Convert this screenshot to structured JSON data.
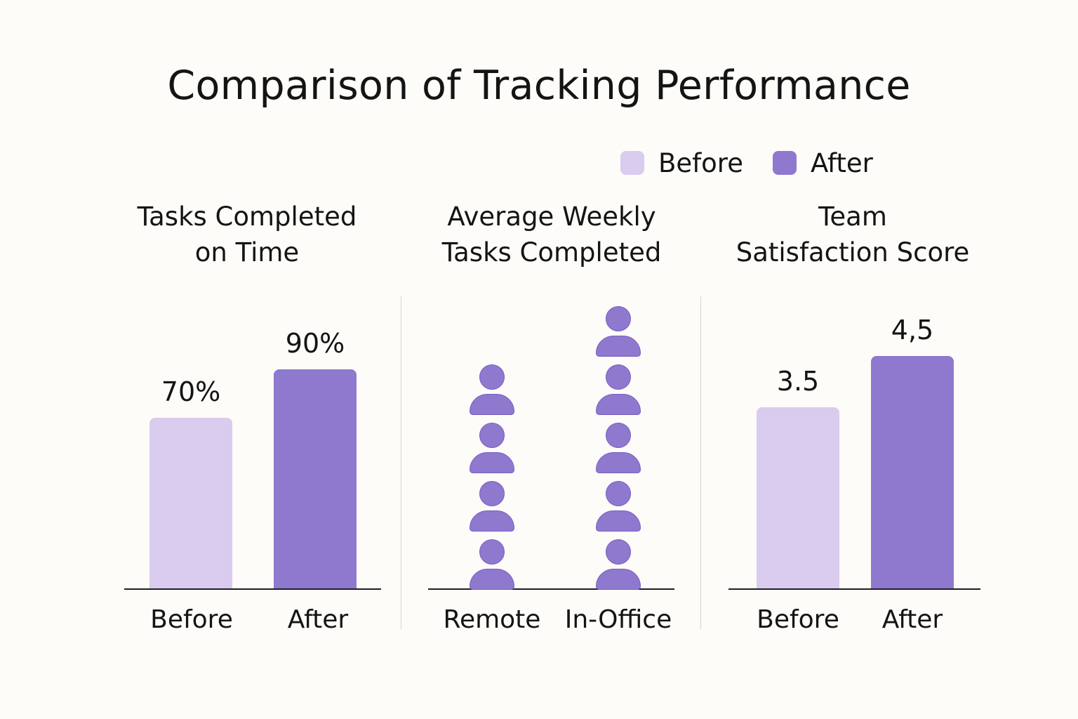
{
  "colors": {
    "before": "#d9ccee",
    "after": "#8e79cf",
    "icon": "#8e79cf"
  },
  "chart_data": {
    "type": "bar",
    "title": "Comparison of Tracking Performance",
    "legend": [
      "Before",
      "After"
    ],
    "legend_position": "top-right",
    "panels": [
      {
        "title": "Tasks Completed\non Time",
        "type": "bar",
        "categories": [
          "Before",
          "After"
        ],
        "values": [
          70,
          90
        ],
        "labels": [
          "70%",
          "90%"
        ],
        "ylim": [
          0,
          100
        ]
      },
      {
        "title": "Average Weekly\nTasks Completed",
        "type": "pictogram",
        "categories": [
          "Remote",
          "In-Office"
        ],
        "values": [
          4,
          5
        ],
        "icon": "person-icon"
      },
      {
        "title": "Team\nSatisfaction Score",
        "type": "bar",
        "categories": [
          "Before",
          "After"
        ],
        "values": [
          3.5,
          4.5
        ],
        "labels": [
          "3.5",
          "4,5"
        ],
        "ylim": [
          0,
          5.5
        ]
      }
    ]
  }
}
